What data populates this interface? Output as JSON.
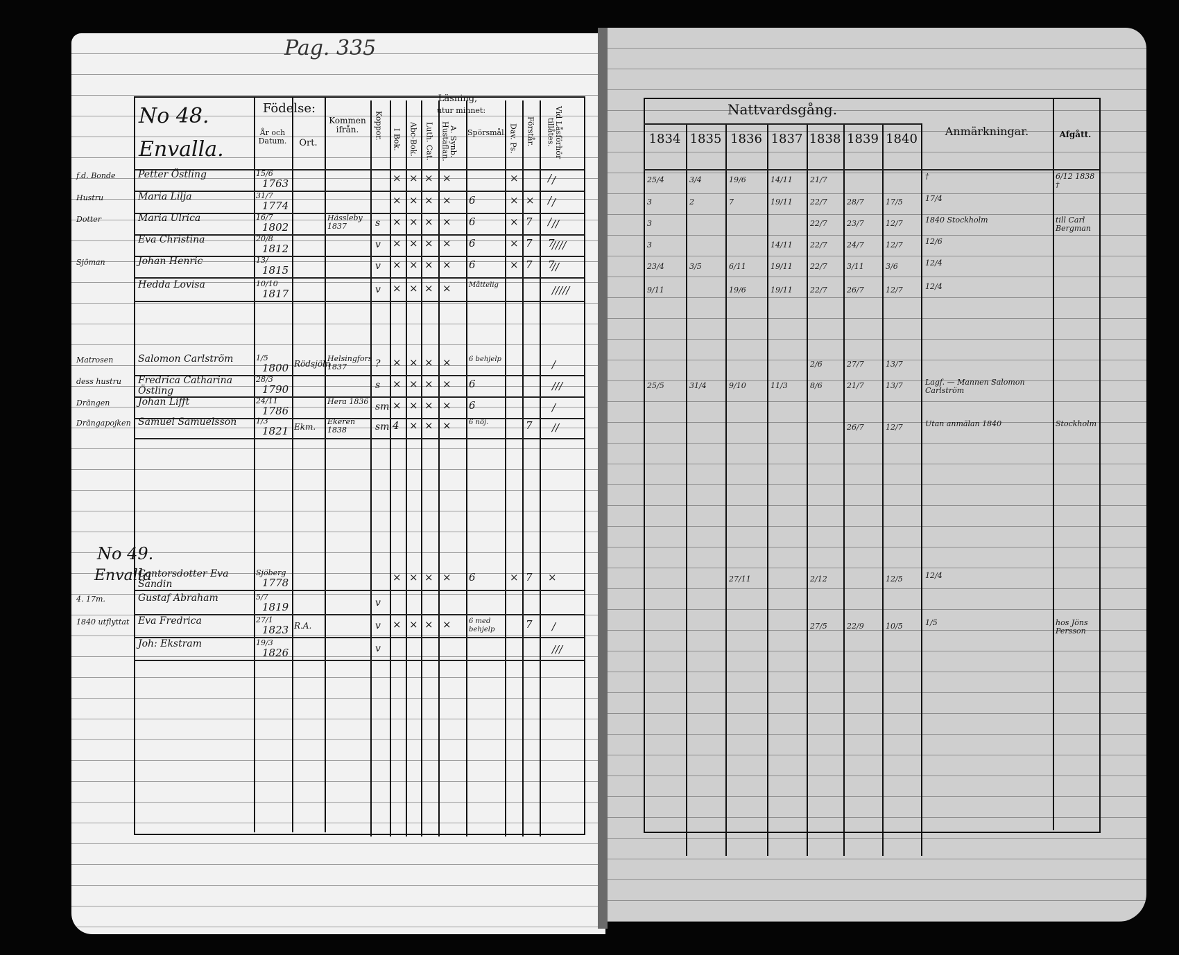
{
  "page_number": "Pag. 335",
  "left": {
    "header": {
      "birth": "Födelse:",
      "year_date": "År och Datum.",
      "place": "Ort.",
      "came_from": "Kommen ifrån.",
      "smallpox": "Koppor.",
      "reading": "Läsning,",
      "in_book": "I Bok.",
      "from_memory": "utur minnet:",
      "abc": "Abc-Bok.",
      "luth_cat": "Luth. Cat.",
      "svebilius": "A. Synb. Hustaflan.",
      "questions": "Spörsmål.",
      "dav_ps": "Dav. Ps.",
      "understanding": "Förstår.",
      "admitted": "Vid Låsförhör tillåtes."
    },
    "households": [
      {
        "number": "No 48.",
        "place": "Envalla.",
        "members": [
          {
            "margin": "f.d. Bonde",
            "name": "Petter Östling",
            "day_month": "15/6",
            "year": "1763",
            "came_from": "",
            "smallpox": "",
            "marks": [
              "×",
              "×",
              "×",
              "×",
              "",
              "×",
              "",
              "/"
            ],
            "admitted": "/"
          },
          {
            "margin": "Hustru",
            "name": "Maria Lilja",
            "day_month": "31/7",
            "year": "1774",
            "came_from": "",
            "smallpox": "",
            "marks": [
              "×",
              "×",
              "×",
              "×",
              "6",
              "×",
              "×",
              "/"
            ],
            "admitted": "/"
          },
          {
            "margin": "Dotter",
            "name": "Maria Ulrica",
            "day_month": "16/7",
            "year": "1802",
            "came_from": "Hässleby 1837",
            "smallpox": "s",
            "marks": [
              "×",
              "×",
              "×",
              "×",
              "6",
              "×",
              "7",
              "/"
            ],
            "admitted": "//"
          },
          {
            "margin": "",
            "name": "Eva Christina",
            "day_month": "20/8",
            "year": "1812",
            "came_from": "",
            "smallpox": "v",
            "marks": [
              "×",
              "×",
              "×",
              "×",
              "6",
              "×",
              "7",
              "7"
            ],
            "admitted": "////"
          },
          {
            "margin": "Sjöman",
            "name": "Johan Henric",
            "day_month": "13/",
            "year": "1815",
            "came_from": "",
            "smallpox": "v",
            "marks": [
              "×",
              "×",
              "×",
              "×",
              "6",
              "×",
              "7",
              "7"
            ],
            "admitted": "//"
          },
          {
            "margin": "",
            "name": "Hedda Lovisa",
            "day_month": "10/10",
            "year": "1817",
            "came_from": "",
            "smallpox": "v",
            "marks": [
              "×",
              "×",
              "×",
              "×",
              "Måttelig",
              "",
              "",
              ""
            ],
            "admitted": "/////"
          }
        ]
      },
      {
        "number": "",
        "place": "",
        "members": [
          {
            "margin": "Matrosen",
            "name": "Salomon Carlström",
            "day_month": "1/5",
            "year": "1800",
            "place": "Rödsjöln",
            "came_from": "Helsingfors 1837",
            "smallpox": "?",
            "marks": [
              "×",
              "×",
              "×",
              "×",
              "6 behjelp",
              "",
              "",
              ""
            ],
            "admitted": "/"
          },
          {
            "margin": "dess hustru",
            "name": "Fredrica Catharina Östling",
            "day_month": "28/3",
            "year": "1790",
            "place": "",
            "came_from": "",
            "smallpox": "s",
            "marks": [
              "×",
              "×",
              "×",
              "×",
              "6",
              "",
              "",
              ""
            ],
            "admitted": "///"
          },
          {
            "margin": "Drängen",
            "name": "Johan Lifft",
            "day_month": "24/11",
            "year": "1786",
            "place": "",
            "came_from": "Hera 1836",
            "smallpox": "sm",
            "marks": [
              "×",
              "×",
              "×",
              "×",
              "6",
              "",
              "",
              ""
            ],
            "admitted": "/"
          },
          {
            "margin": "Drängapojken",
            "name": "Samuel Samuelsson",
            "day_month": "1/3",
            "year": "1821",
            "place": "Ekm.",
            "came_from": "Ekeren 1838",
            "smallpox": "sm",
            "marks": [
              "4",
              "×",
              "×",
              "×",
              "6 nöj.",
              "",
              "7",
              ""
            ],
            "admitted": "//"
          }
        ]
      },
      {
        "number": "No 49.",
        "place": "Envalla",
        "members": [
          {
            "margin": "",
            "name": "Cantorsdotter Eva Sandin",
            "day_month": "Sjöberg",
            "year": "1778",
            "place": "",
            "came_from": "",
            "smallpox": "",
            "marks": [
              "×",
              "×",
              "×",
              "×",
              "6",
              "×",
              "7",
              "×"
            ],
            "admitted": ""
          },
          {
            "margin": "4. 17m.",
            "name": "Gustaf Abraham",
            "day_month": "5/7",
            "year": "1819",
            "place": "",
            "came_from": "",
            "smallpox": "v",
            "marks": [
              "",
              "",
              "",
              "",
              "",
              "",
              "",
              ""
            ],
            "admitted": ""
          },
          {
            "margin": "1840 utflyttat",
            "name": "Eva Fredrica",
            "day_month": "27/1",
            "year": "1823",
            "place": "R.A.",
            "came_from": "",
            "smallpox": "v",
            "marks": [
              "×",
              "×",
              "×",
              "×",
              "6 med behjelp",
              "",
              "7",
              ""
            ],
            "admitted": "/"
          },
          {
            "margin": "",
            "name": "Joh: Ekstram",
            "day_month": "19/3",
            "year": "1826",
            "place": "",
            "came_from": "",
            "smallpox": "v",
            "marks": [
              "",
              "",
              "",
              "",
              "",
              "",
              "",
              ""
            ],
            "admitted": "///"
          }
        ]
      }
    ]
  },
  "right": {
    "header": {
      "communion": "Nattvardsgång.",
      "years": [
        "1834",
        "1835",
        "1836",
        "1837",
        "1838",
        "1839",
        "1840"
      ],
      "remarks": "Anmärkningar.",
      "departed": "Afgått."
    },
    "rows": [
      {
        "dates": [
          "25/4",
          "3/4",
          "19/6",
          "14/11",
          "21/7",
          "",
          ""
        ],
        "remarks": "†",
        "departed": "6/12 1838 †"
      },
      {
        "dates": [
          "3",
          "2",
          "7",
          "19/11",
          "22/7",
          "28/7",
          "17/5"
        ],
        "remarks": "17/4",
        "departed": ""
      },
      {
        "dates": [
          "3",
          "",
          "",
          "",
          "22/7",
          "23/7",
          "12/7"
        ],
        "remarks": "1840 Stockholm",
        "departed": "till Carl Bergman"
      },
      {
        "dates": [
          "3",
          "",
          "",
          "14/11",
          "22/7",
          "24/7",
          "12/7"
        ],
        "remarks": "12/6",
        "departed": ""
      },
      {
        "dates": [
          "23/4",
          "3/5",
          "6/11",
          "19/11",
          "22/7",
          "3/11",
          "3/6"
        ],
        "remarks": "12/4",
        "departed": ""
      },
      {
        "dates": [
          "9/11",
          "",
          "19/6",
          "19/11",
          "22/7",
          "26/7",
          "12/7"
        ],
        "remarks": "12/4",
        "departed": ""
      },
      {
        "dates": [
          "",
          "",
          "",
          "",
          "2/6",
          "27/7",
          "13/7"
        ],
        "remarks": "",
        "departed": ""
      },
      {
        "dates": [
          "25/5",
          "31/4",
          "9/10",
          "11/3",
          "8/6",
          "21/7",
          "13/7"
        ],
        "remarks": "Lagf. — Mannen Salomon Carlström",
        "departed": ""
      },
      {
        "dates": [
          "",
          "",
          "",
          "",
          "",
          "26/7",
          "12/7"
        ],
        "remarks": "Utan anmälan 1840",
        "departed": "Stockholm"
      },
      {
        "dates": [
          "",
          "",
          "27/11",
          "",
          "2/12",
          "",
          "12/5"
        ],
        "remarks": "12/4",
        "departed": ""
      },
      {
        "dates": [
          "",
          "",
          "",
          "",
          "27/5",
          "22/9",
          "10/5"
        ],
        "remarks": "1/5",
        "departed": "hos Jöns Persson"
      }
    ]
  }
}
